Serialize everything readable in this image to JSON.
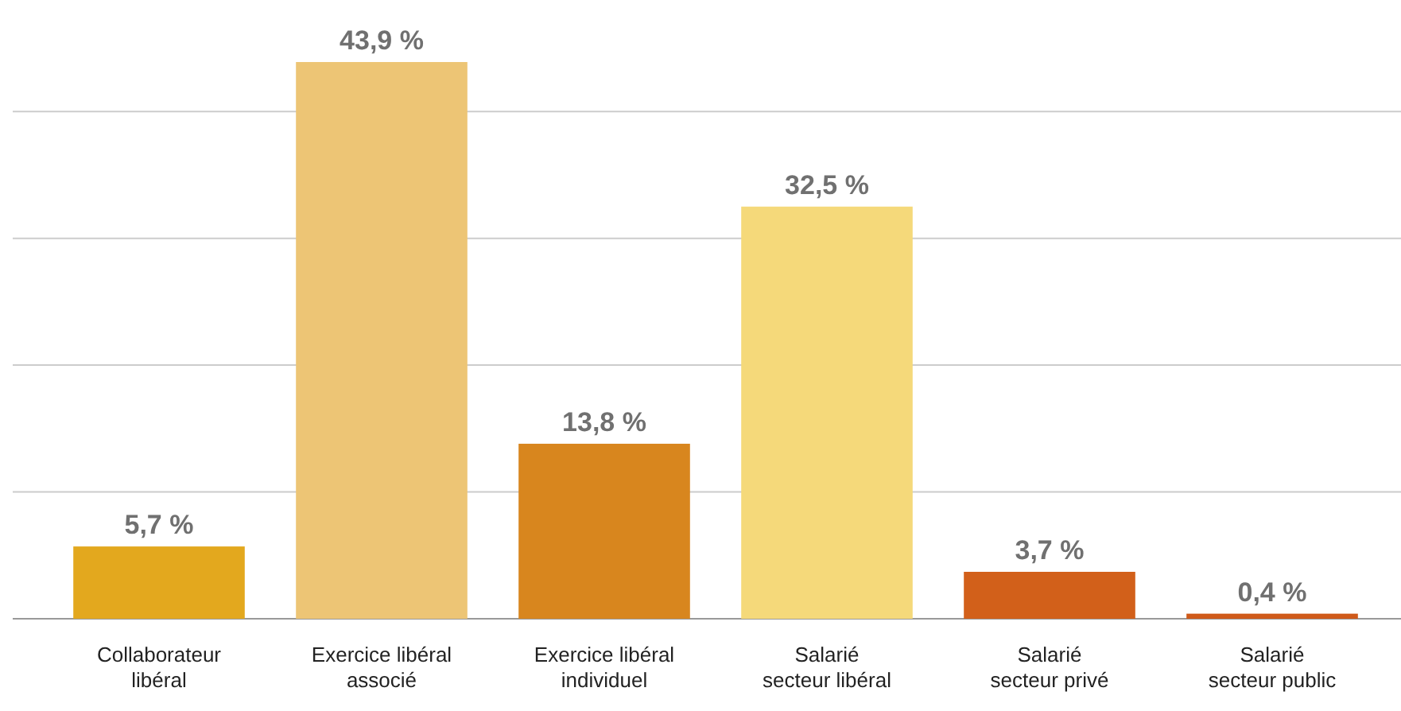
{
  "chart_data": {
    "type": "bar",
    "categories": [
      "Collaborateur\nlibéral",
      "Exercice libéral\nassocié",
      "Exercice libéral\nindividuel",
      "Salarié\nsecteur libéral",
      "Salarié\nsecteur privé",
      "Salarié\nsecteur public"
    ],
    "values": [
      5.7,
      43.9,
      13.8,
      32.5,
      3.7,
      0.4
    ],
    "colors": [
      "#e3a81e",
      "#edc575",
      "#d8861e",
      "#f5d97a",
      "#d2601a",
      "#cf5a1a"
    ],
    "value_labels": [
      "5,7 %",
      "43,9 %",
      "13,8 %",
      "32,5 %",
      "3,7 %",
      "0,4 %"
    ],
    "yticks": [
      {
        "value": 0,
        "label": null
      },
      {
        "value": 10,
        "label": null
      },
      {
        "value": 20,
        "label": null
      },
      {
        "value": 30,
        "label": null
      },
      {
        "value": 40,
        "label": null
      }
    ],
    "grid": "y",
    "tick_labels": "x"
  }
}
